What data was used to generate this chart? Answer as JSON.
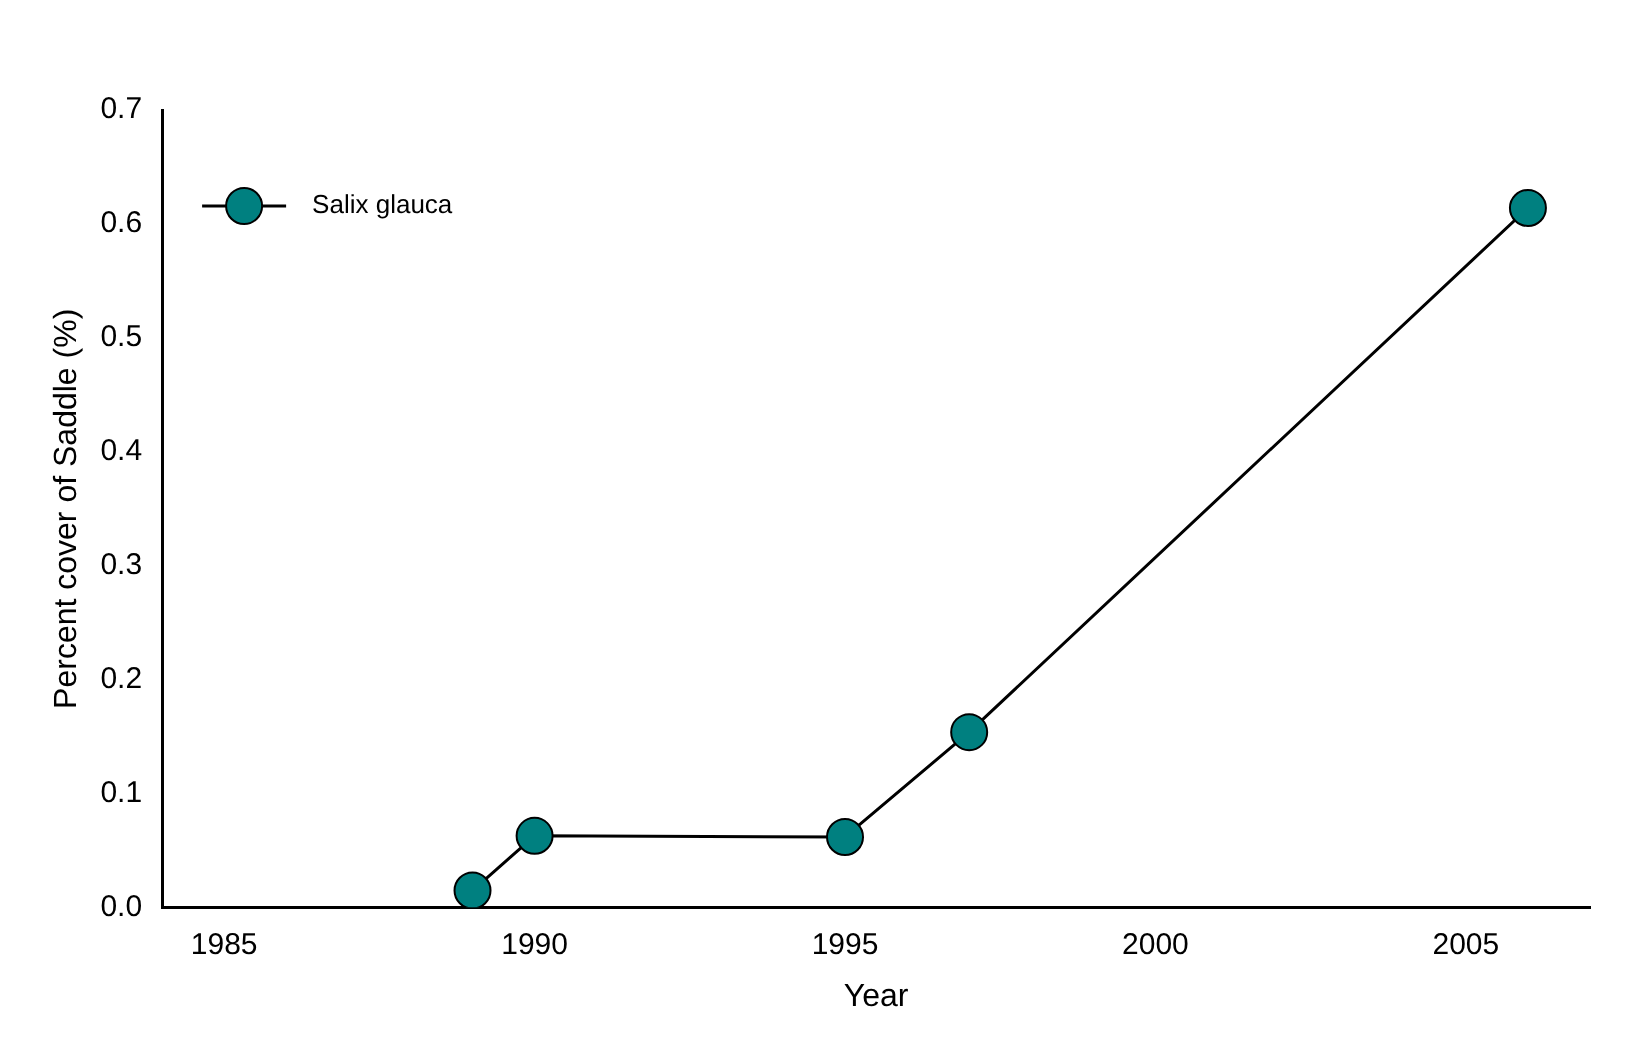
{
  "chart_data": {
    "type": "line",
    "xlabel": "Year",
    "ylabel": "Percent cover of Saddle (%)",
    "x": [
      1989,
      1990,
      1995,
      1997,
      2006
    ],
    "series": [
      {
        "name": "Salix glauca",
        "color": "#008080",
        "values": [
          0.015,
          0.063,
          0.062,
          0.154,
          0.614
        ]
      }
    ],
    "xlim": [
      1984,
      2007
    ],
    "xticks": [
      1985,
      1990,
      1995,
      2000,
      2005
    ],
    "ylim": [
      0,
      0.7
    ],
    "yticks": [
      {
        "value": 0,
        "label": "0.0"
      },
      0.1,
      0.2,
      0.3,
      0.4,
      0.5,
      0.6,
      0.7
    ],
    "grid": false,
    "legend": "top left",
    "marker": "circle",
    "line_style": "solid"
  }
}
